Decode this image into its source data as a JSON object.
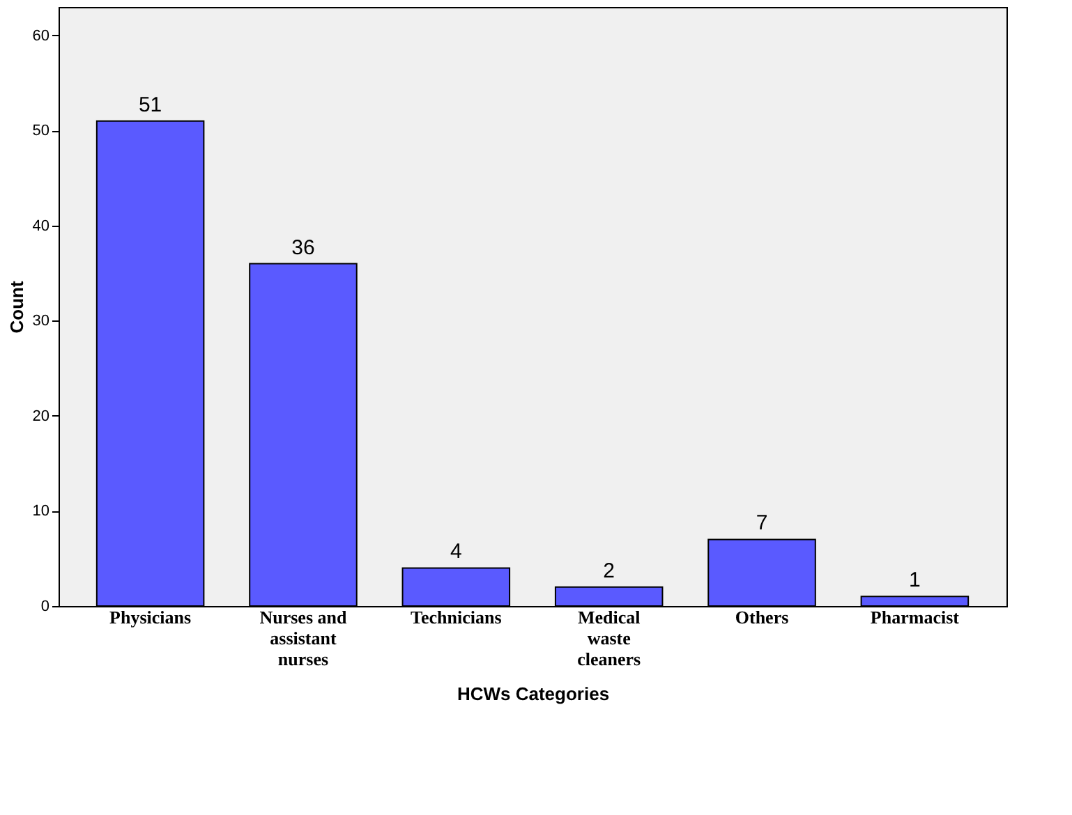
{
  "chart_data": {
    "type": "bar",
    "xlabel": "HCWs Categories",
    "ylabel": "Count",
    "categories": [
      "Physicians",
      "Nurses and assistant nurses",
      "Technicians",
      "Medical waste cleaners",
      "Others",
      "Pharmacist"
    ],
    "values": [
      51,
      36,
      4,
      2,
      7,
      1
    ],
    "color": "#5a5aff",
    "ylim": [
      0,
      63
    ],
    "yticks": [
      0,
      10,
      20,
      30,
      40,
      50,
      60
    ],
    "grid": false,
    "data_labels": true
  }
}
